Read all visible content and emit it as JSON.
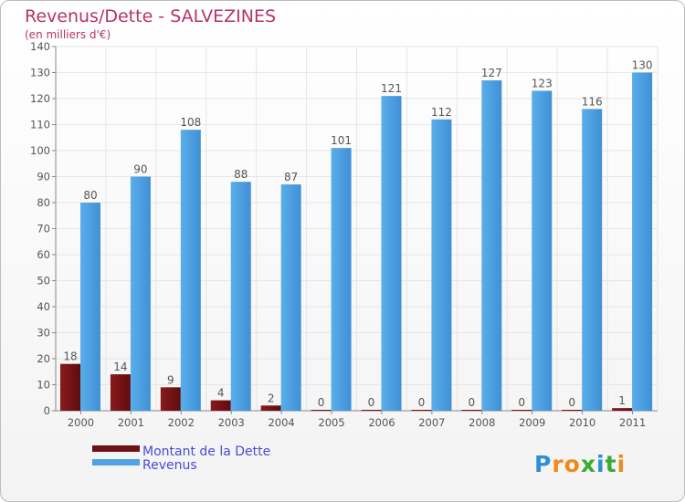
{
  "chart_data": {
    "type": "bar",
    "title": "Revenus/Dette - SALVEZINES",
    "subtitle": "(en milliers d'€)",
    "categories": [
      "2000",
      "2001",
      "2002",
      "2003",
      "2004",
      "2005",
      "2006",
      "2007",
      "2008",
      "2009",
      "2010",
      "2011"
    ],
    "series": [
      {
        "name": "Montant de la Dette",
        "color": "#7a1214",
        "values": [
          18,
          14,
          9,
          4,
          2,
          0,
          0,
          0,
          0,
          0,
          0,
          1
        ]
      },
      {
        "name": "Revenus",
        "color": "#4fa3e4",
        "values": [
          80,
          90,
          108,
          88,
          87,
          101,
          121,
          112,
          127,
          123,
          116,
          130
        ]
      }
    ],
    "yticks": [
      0,
      10,
      20,
      30,
      40,
      50,
      60,
      70,
      80,
      90,
      100,
      110,
      120,
      130,
      140
    ],
    "ylim": [
      0,
      140
    ],
    "grid": true,
    "legend": "bottom-left"
  },
  "logo": {
    "text": "Proxiti",
    "letters": [
      "P",
      "r",
      "o",
      "x",
      "i",
      "t",
      "i"
    ],
    "colors": [
      "#2e8fd8",
      "#f08a1c",
      "#f08a1c",
      "#3aaa35",
      "#2e8fd8",
      "#3aaa35",
      "#f08a1c"
    ]
  }
}
